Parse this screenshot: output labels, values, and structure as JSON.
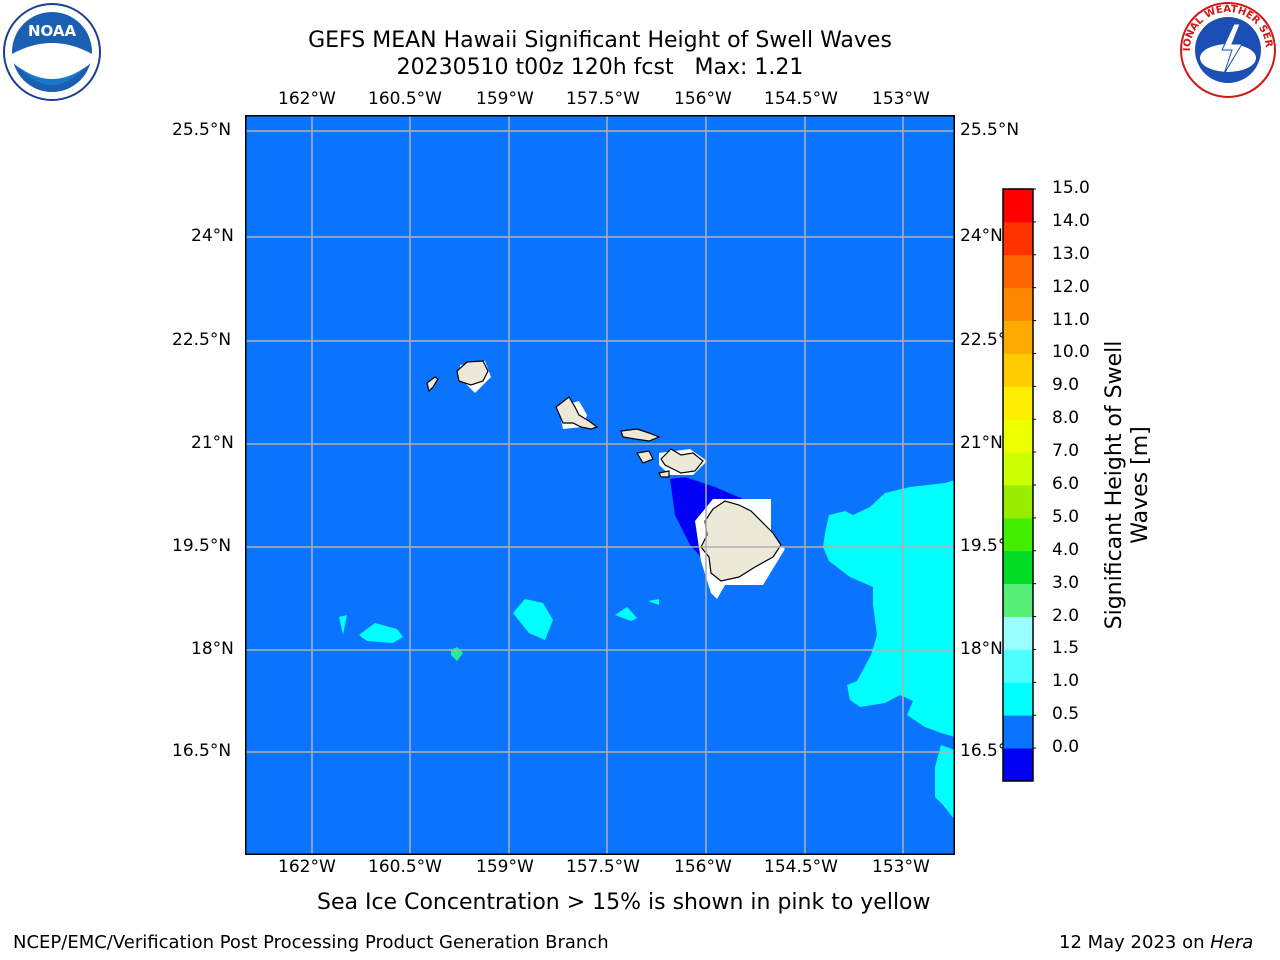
{
  "title": {
    "line1": "GEFS MEAN Hawaii Significant Height of Swell Waves",
    "line2": "20230510 t00z 120h fcst   Max: 1.21"
  },
  "map": {
    "lon_labels": [
      "162°W",
      "160.5°W",
      "159°W",
      "157.5°W",
      "156°W",
      "154.5°W",
      "153°W"
    ],
    "lat_labels": [
      "25.5°N",
      "24°N",
      "22.5°N",
      "21°N",
      "19.5°N",
      "18°N",
      "16.5°N"
    ],
    "ocean_color": "#0a74ff",
    "land_color": "#ece9d8",
    "grid_color": "#b0b0b0"
  },
  "colorbar": {
    "label": "Significant Height of Swell Waves [m]",
    "ticks": [
      "15.0",
      "14.0",
      "13.0",
      "12.0",
      "11.0",
      "10.0",
      "9.0",
      "8.0",
      "7.0",
      "6.0",
      "5.0",
      "4.0",
      "3.0",
      "2.0",
      "1.5",
      "1.0",
      "0.5",
      "0.0"
    ],
    "colors_bottom_to_top": [
      "#0000f5",
      "#0a74ff",
      "#00ffff",
      "#4dffff",
      "#99ffff",
      "#55ee77",
      "#00dd22",
      "#44ee00",
      "#99ee00",
      "#ccff00",
      "#eeff00",
      "#ffee00",
      "#ffcc00",
      "#ffaa00",
      "#ff8800",
      "#ff6600",
      "#ff3300",
      "#ff0000"
    ]
  },
  "caption": "Sea Ice Concentration > 15% is shown in pink to yellow",
  "footer": {
    "left": "NCEP/EMC/Verification Post Processing Product Generation Branch",
    "right_date": "12 May 2023 on ",
    "right_host": "Hera"
  },
  "logos": {
    "noaa": "NOAA",
    "nws": "NATIONAL WEATHER SERVICE"
  }
}
